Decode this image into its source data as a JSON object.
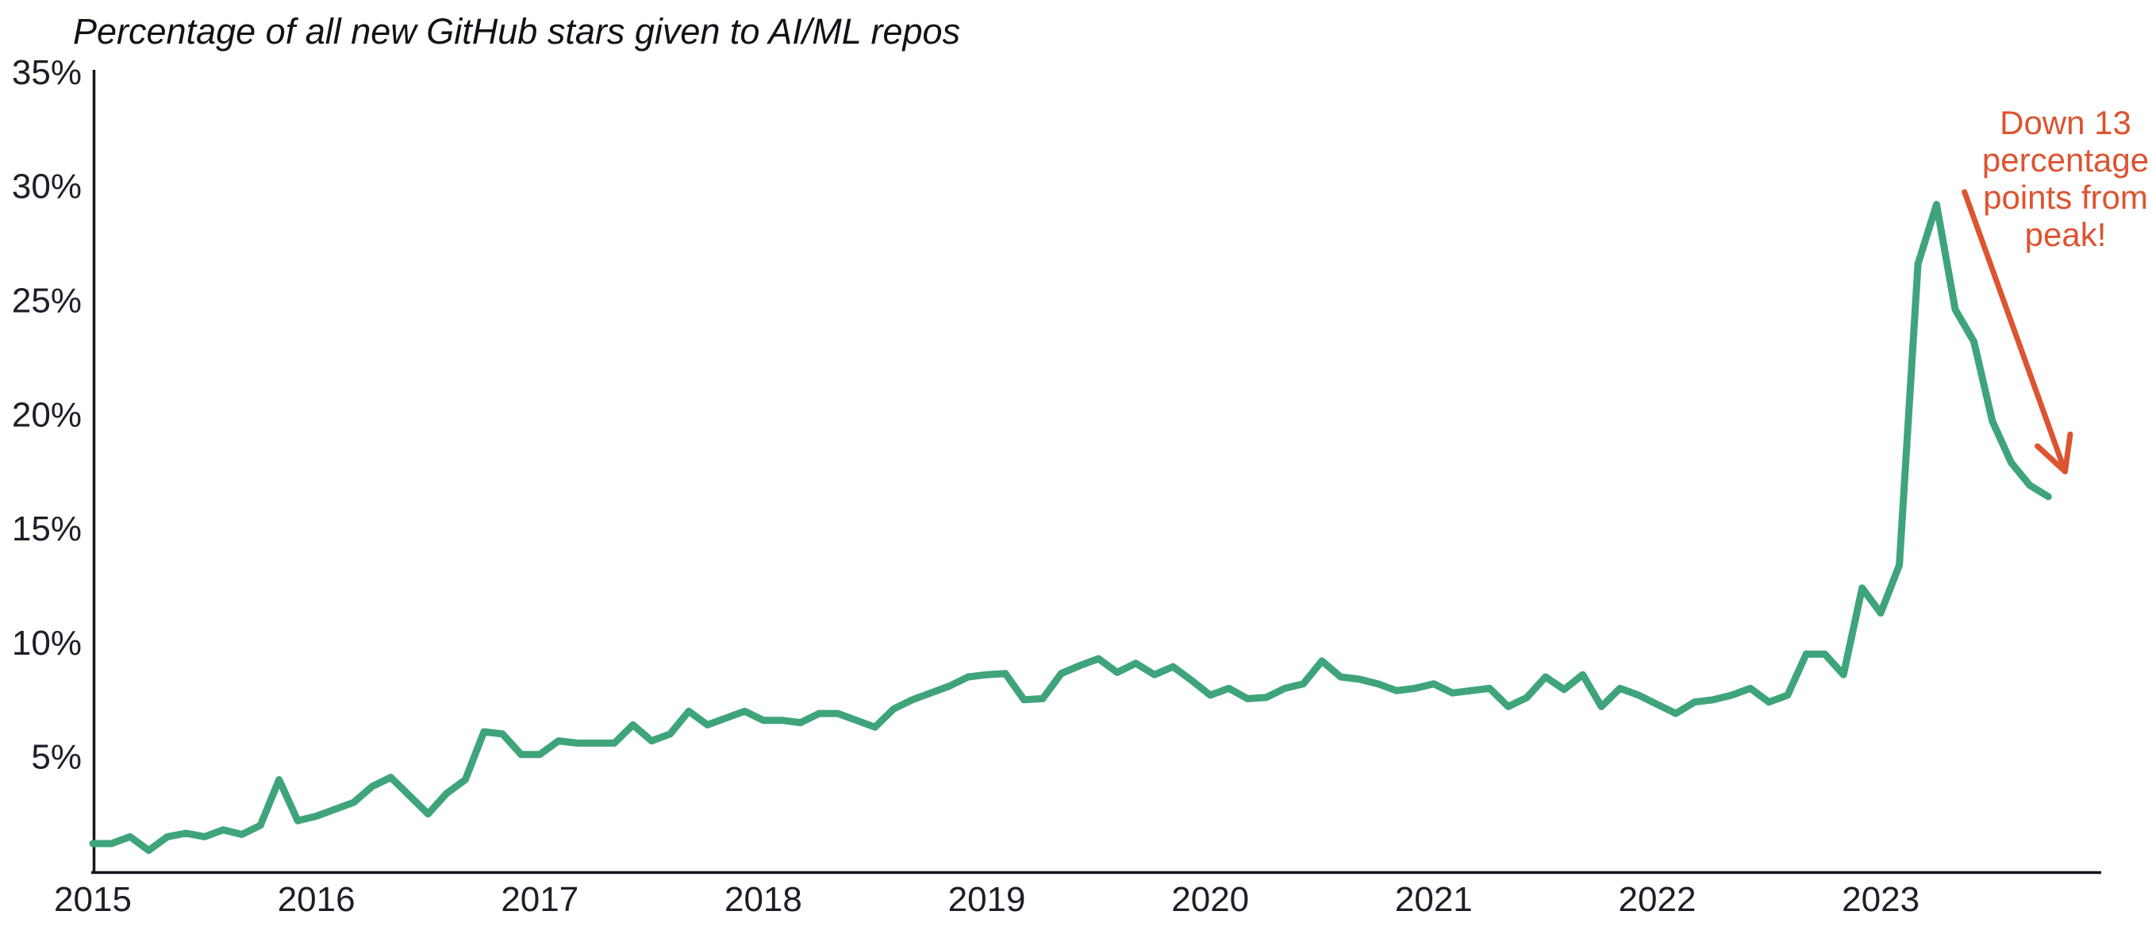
{
  "chart_data": {
    "type": "line",
    "title": "Percentage of all new GitHub stars given to AI/ML repos",
    "x_axis": {
      "tick_labels": [
        "2015",
        "2016",
        "2017",
        "2018",
        "2019",
        "2020",
        "2021",
        "2022",
        "2023"
      ],
      "unit": "year"
    },
    "y_axis": {
      "tick_labels": [
        "35%",
        "30%",
        "25%",
        "20%",
        "15%",
        "10%",
        "5%"
      ],
      "tick_values": [
        35,
        30,
        25,
        20,
        15,
        10,
        5
      ],
      "min": 0,
      "max": 35,
      "unit": "percent"
    },
    "grid": false,
    "legend_shown": false,
    "series": {
      "color": "#3fa47c",
      "start": "2015-01",
      "frequency": "monthly",
      "values": [
        1.2,
        1.2,
        1.5,
        0.9,
        1.5,
        1.65,
        1.5,
        1.8,
        1.6,
        2.0,
        4.0,
        2.2,
        2.4,
        2.7,
        3.0,
        3.7,
        4.1,
        3.3,
        2.5,
        3.4,
        4.0,
        6.1,
        6.0,
        5.1,
        5.1,
        5.7,
        5.6,
        5.6,
        5.6,
        6.4,
        5.7,
        6.0,
        7.0,
        6.4,
        6.7,
        7.0,
        6.6,
        6.6,
        6.5,
        6.9,
        6.9,
        6.6,
        6.3,
        7.1,
        7.5,
        7.8,
        8.1,
        8.5,
        8.6,
        8.65,
        7.5,
        7.55,
        8.65,
        9.0,
        9.3,
        8.7,
        9.1,
        8.6,
        8.95,
        8.35,
        7.7,
        8.0,
        7.55,
        7.6,
        8.0,
        8.2,
        9.2,
        8.5,
        8.4,
        8.2,
        7.9,
        8.0,
        8.2,
        7.8,
        7.9,
        8.0,
        7.2,
        7.6,
        8.5,
        7.95,
        8.6,
        7.2,
        8.0,
        7.7,
        7.3,
        6.9,
        7.4,
        7.5,
        7.7,
        8.0,
        7.4,
        7.7,
        9.5,
        9.5,
        8.6,
        12.4,
        11.3,
        13.4,
        26.6,
        29.2,
        24.6,
        23.2,
        19.7,
        17.9,
        16.9,
        16.4
      ]
    },
    "annotation": {
      "lines": [
        "Down 13",
        "percentage",
        "points from",
        "peak!"
      ],
      "text": "Down 13 percentage points from peak!",
      "color": "#dc5430",
      "arrow_from": {
        "month_index": 100.5,
        "value": 29.75
      },
      "arrow_to": {
        "month_index": 105.9,
        "value": 17.5
      }
    },
    "colors": {
      "line": "#3fa47c",
      "annotation": "#dc5430",
      "axis": "#15151b",
      "tick_label": "#1e1e28",
      "background": "#ffffff"
    }
  }
}
